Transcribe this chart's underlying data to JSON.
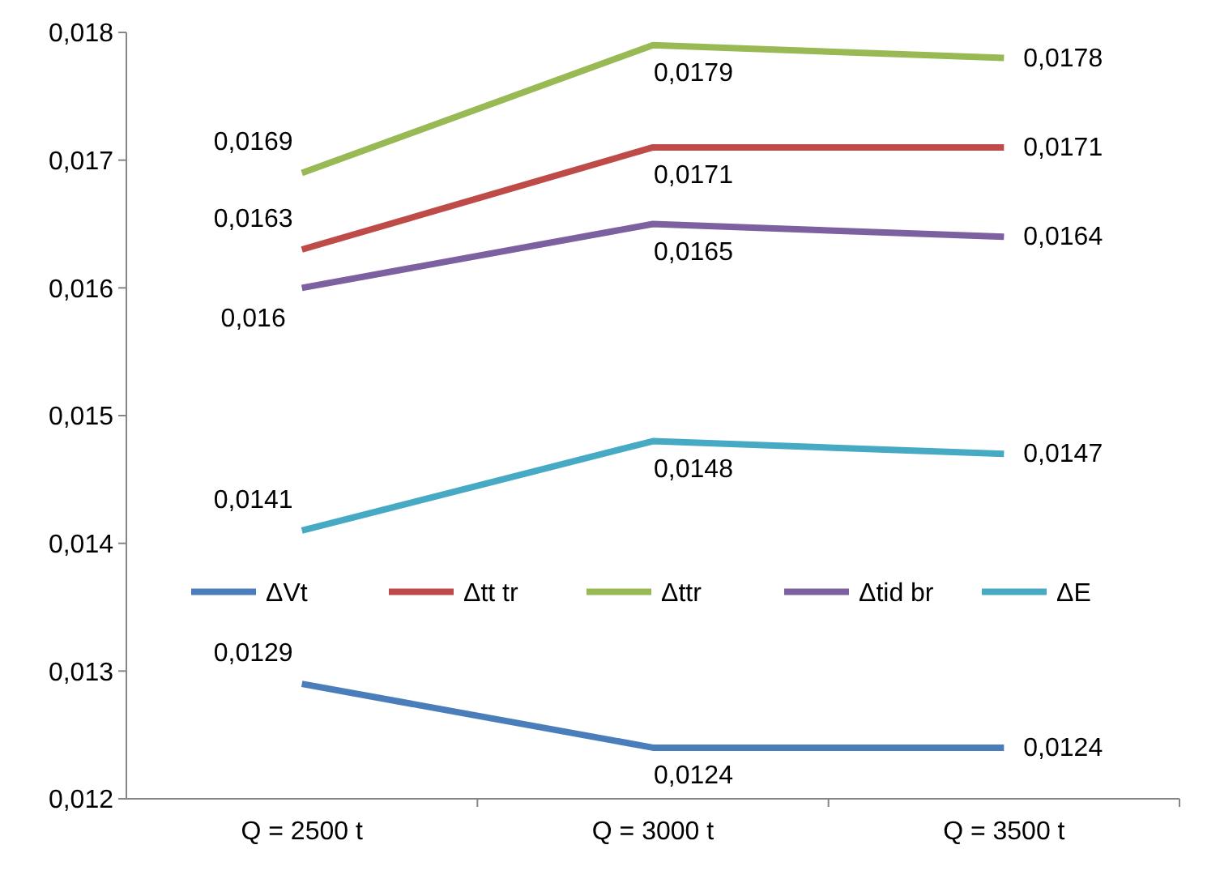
{
  "chart_data": {
    "type": "line",
    "categories": [
      "Q = 2500 t",
      "Q = 3000 t",
      "Q = 3500 t"
    ],
    "series": [
      {
        "name": "ΔVt",
        "color": "#4a7ebb",
        "values": [
          0.0129,
          0.0124,
          0.0124
        ],
        "value_labels": [
          "0,0129",
          "0,0124",
          "0,0124"
        ]
      },
      {
        "name": "Δtt tr",
        "color": "#be4b48",
        "values": [
          0.0163,
          0.0171,
          0.0171
        ],
        "value_labels": [
          "0,0163",
          "0,0171",
          "0,0171"
        ]
      },
      {
        "name": "Δttr",
        "color": "#98b954",
        "values": [
          0.0169,
          0.0179,
          0.0178
        ],
        "value_labels": [
          "0,0169",
          "0,0179",
          "0,0178"
        ]
      },
      {
        "name": "Δtid br",
        "color": "#7d60a0",
        "values": [
          0.016,
          0.0165,
          0.0164
        ],
        "value_labels": [
          "0,016",
          "0,0165",
          "0,0164"
        ]
      },
      {
        "name": "ΔE",
        "color": "#46aac5",
        "values": [
          0.0141,
          0.0148,
          0.0147
        ],
        "value_labels": [
          "0,0141",
          "0,0148",
          "0,0147"
        ]
      }
    ],
    "ylim": [
      0.012,
      0.018
    ],
    "yticks": [
      {
        "value": 0.012,
        "label": "0,012"
      },
      {
        "value": 0.013,
        "label": "0,013"
      },
      {
        "value": 0.014,
        "label": "0,014"
      },
      {
        "value": 0.015,
        "label": "0,015"
      },
      {
        "value": 0.016,
        "label": "0,016"
      },
      {
        "value": 0.017,
        "label": "0,017"
      },
      {
        "value": 0.018,
        "label": "0,018"
      }
    ],
    "grid": false,
    "legend": "center",
    "marker": "none",
    "line_style": "solid"
  }
}
